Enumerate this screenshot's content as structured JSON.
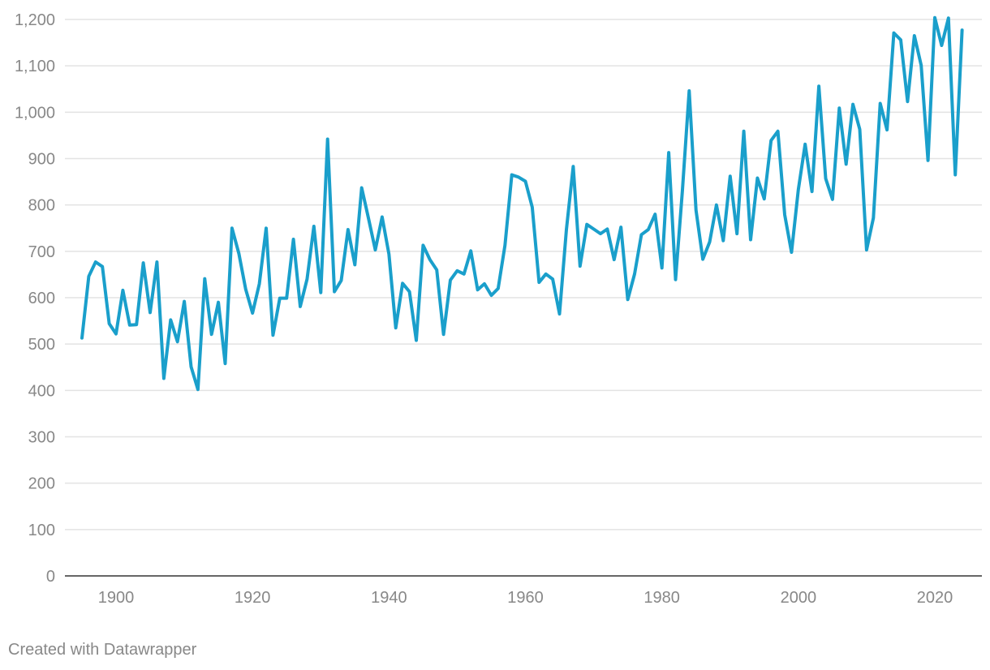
{
  "chart_data": {
    "type": "line",
    "title": "",
    "xlabel": "",
    "ylabel": "",
    "xlim": [
      1895,
      2024
    ],
    "ylim": [
      0,
      1200
    ],
    "y_ticks": [
      0,
      100,
      200,
      300,
      400,
      500,
      600,
      700,
      800,
      900,
      1000,
      1100,
      1200
    ],
    "y_tick_labels": [
      "0",
      "100",
      "200",
      "300",
      "400",
      "500",
      "600",
      "700",
      "800",
      "900",
      "1,000",
      "1,100",
      "1,200"
    ],
    "x_ticks": [
      1900,
      1920,
      1940,
      1960,
      1980,
      2000,
      2020
    ],
    "x_tick_labels": [
      "1900",
      "1920",
      "1940",
      "1960",
      "1980",
      "2000",
      "2020"
    ],
    "grid": "horizontal",
    "legend": "none",
    "series": [
      {
        "color": "#1a9fcb",
        "x": [
          1895,
          1896,
          1897,
          1898,
          1899,
          1900,
          1901,
          1902,
          1903,
          1904,
          1905,
          1906,
          1907,
          1908,
          1909,
          1910,
          1911,
          1912,
          1913,
          1914,
          1915,
          1916,
          1917,
          1918,
          1919,
          1920,
          1921,
          1922,
          1923,
          1924,
          1925,
          1926,
          1927,
          1928,
          1929,
          1930,
          1931,
          1932,
          1933,
          1934,
          1935,
          1936,
          1937,
          1938,
          1939,
          1940,
          1941,
          1942,
          1943,
          1944,
          1945,
          1946,
          1947,
          1948,
          1949,
          1950,
          1951,
          1952,
          1953,
          1954,
          1955,
          1956,
          1957,
          1958,
          1959,
          1960,
          1961,
          1962,
          1963,
          1964,
          1965,
          1966,
          1967,
          1968,
          1969,
          1970,
          1971,
          1972,
          1973,
          1974,
          1975,
          1976,
          1977,
          1978,
          1979,
          1980,
          1981,
          1982,
          1983,
          1984,
          1985,
          1986,
          1987,
          1988,
          1989,
          1990,
          1991,
          1992,
          1993,
          1994,
          1995,
          1996,
          1997,
          1998,
          1999,
          2000,
          2001,
          2002,
          2003,
          2004,
          2005,
          2006,
          2007,
          2008,
          2009,
          2010,
          2011,
          2012,
          2013,
          2014,
          2015,
          2016,
          2017,
          2018,
          2019,
          2020,
          2021,
          2022,
          2023,
          2024
        ],
        "values": [
          513,
          646,
          677,
          667,
          544,
          522,
          616,
          541,
          542,
          675,
          568,
          677,
          426,
          552,
          505,
          592,
          451,
          402,
          641,
          521,
          590,
          458,
          750,
          695,
          618,
          567,
          630,
          750,
          519,
          599,
          599,
          726,
          581,
          640,
          754,
          611,
          942,
          613,
          637,
          747,
          671,
          837,
          771,
          703,
          774,
          694,
          535,
          631,
          613,
          508,
          713,
          682,
          660,
          521,
          638,
          658,
          651,
          701,
          617,
          630,
          605,
          620,
          713,
          865,
          860,
          851,
          795,
          633,
          651,
          640,
          565,
          747,
          883,
          668,
          758,
          748,
          738,
          748,
          682,
          752,
          596,
          651,
          736,
          747,
          780,
          664,
          913,
          639,
          830,
          1046,
          789,
          683,
          720,
          800,
          723,
          862,
          738,
          959,
          725,
          858,
          813,
          939,
          959,
          779,
          698,
          833,
          931,
          829,
          1056,
          857,
          812,
          1009,
          888,
          1017,
          963,
          703,
          772,
          1019,
          962,
          1171,
          1156,
          1023,
          1165,
          1101,
          896,
          1204,
          1144,
          1203,
          865,
          1177
        ]
      }
    ]
  },
  "credit": "Created with Datawrapper"
}
